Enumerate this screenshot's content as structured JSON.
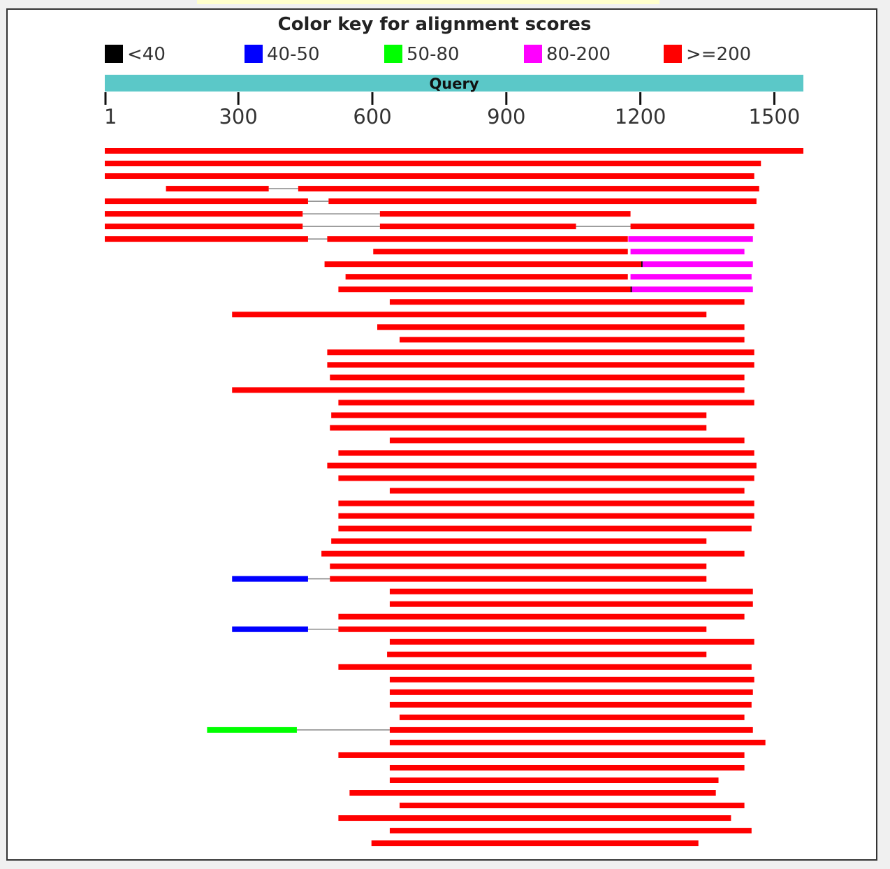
{
  "title": "Color key for alignment scores",
  "legend": [
    {
      "label": "<40",
      "color": "#000000"
    },
    {
      "label": "40-50",
      "color": "#0000ff"
    },
    {
      "label": "50-80",
      "color": "#00ff00"
    },
    {
      "label": "80-200",
      "color": "#ff00ff"
    },
    {
      "label": ">=200",
      "color": "#ff0000"
    }
  ],
  "query": {
    "label": "Query",
    "color": "#5bc8c8",
    "length": 1565
  },
  "ticks": [
    {
      "label": "1",
      "value": 1
    },
    {
      "label": "300",
      "value": 300
    },
    {
      "label": "600",
      "value": 600
    },
    {
      "label": "900",
      "value": 900
    },
    {
      "label": "1200",
      "value": 1200
    },
    {
      "label": "1500",
      "value": 1500
    }
  ],
  "connector_color": "#888888",
  "hits": [
    {
      "segments": [
        {
          "start": 1,
          "end": 1565,
          "color": "#ff0000"
        }
      ]
    },
    {
      "segments": [
        {
          "start": 1,
          "end": 1470,
          "color": "#ff0000"
        }
      ]
    },
    {
      "segments": [
        {
          "start": 1,
          "end": 1455,
          "color": "#ff0000"
        }
      ]
    },
    {
      "segments": [
        {
          "start": 138,
          "end": 368,
          "color": "#ff0000"
        },
        {
          "start": 434,
          "end": 1466,
          "color": "#ff0000"
        }
      ]
    },
    {
      "segments": [
        {
          "start": 1,
          "end": 456,
          "color": "#ff0000"
        },
        {
          "start": 502,
          "end": 1460,
          "color": "#ff0000"
        }
      ]
    },
    {
      "segments": [
        {
          "start": 1,
          "end": 444,
          "color": "#ff0000"
        },
        {
          "start": 617,
          "end": 1178,
          "color": "#ff0000"
        }
      ]
    },
    {
      "segments": [
        {
          "start": 1,
          "end": 444,
          "color": "#ff0000"
        },
        {
          "start": 617,
          "end": 1056,
          "color": "#ff0000"
        },
        {
          "start": 1178,
          "end": 1455,
          "color": "#ff0000"
        }
      ]
    },
    {
      "segments": [
        {
          "start": 1,
          "end": 456,
          "color": "#ff0000"
        },
        {
          "start": 499,
          "end": 1172,
          "color": "#ff0000"
        },
        {
          "start": 1173,
          "end": 1452,
          "color": "#ff00ff"
        }
      ]
    },
    {
      "segments": [
        {
          "start": 602,
          "end": 1172,
          "color": "#ff0000"
        },
        {
          "start": 1178,
          "end": 1433,
          "color": "#ff00ff"
        }
      ]
    },
    {
      "segments": [
        {
          "start": 493,
          "end": 1202,
          "color": "#ff0000"
        },
        {
          "start": 1202,
          "end": 1205,
          "color": "#000000"
        },
        {
          "start": 1205,
          "end": 1452,
          "color": "#ff00ff"
        }
      ]
    },
    {
      "segments": [
        {
          "start": 540,
          "end": 1172,
          "color": "#ff0000"
        },
        {
          "start": 1178,
          "end": 1449,
          "color": "#ff00ff"
        }
      ]
    },
    {
      "segments": [
        {
          "start": 524,
          "end": 1178,
          "color": "#ff0000"
        },
        {
          "start": 1178,
          "end": 1181,
          "color": "#000000"
        },
        {
          "start": 1181,
          "end": 1452,
          "color": "#ff00ff"
        }
      ]
    },
    {
      "segments": [
        {
          "start": 639,
          "end": 1433,
          "color": "#ff0000"
        }
      ]
    },
    {
      "segments": [
        {
          "start": 286,
          "end": 1348,
          "color": "#ff0000"
        }
      ]
    },
    {
      "segments": [
        {
          "start": 611,
          "end": 1433,
          "color": "#ff0000"
        }
      ]
    },
    {
      "segments": [
        {
          "start": 661,
          "end": 1433,
          "color": "#ff0000"
        }
      ]
    },
    {
      "segments": [
        {
          "start": 499,
          "end": 1455,
          "color": "#ff0000"
        }
      ]
    },
    {
      "segments": [
        {
          "start": 499,
          "end": 1455,
          "color": "#ff0000"
        }
      ]
    },
    {
      "segments": [
        {
          "start": 505,
          "end": 1433,
          "color": "#ff0000"
        }
      ]
    },
    {
      "segments": [
        {
          "start": 286,
          "end": 1433,
          "color": "#ff0000"
        }
      ]
    },
    {
      "segments": [
        {
          "start": 524,
          "end": 1455,
          "color": "#ff0000"
        }
      ]
    },
    {
      "segments": [
        {
          "start": 508,
          "end": 1348,
          "color": "#ff0000"
        }
      ]
    },
    {
      "segments": [
        {
          "start": 505,
          "end": 1348,
          "color": "#ff0000"
        }
      ]
    },
    {
      "segments": [
        {
          "start": 639,
          "end": 1433,
          "color": "#ff0000"
        }
      ]
    },
    {
      "segments": [
        {
          "start": 524,
          "end": 1455,
          "color": "#ff0000"
        }
      ]
    },
    {
      "segments": [
        {
          "start": 499,
          "end": 1460,
          "color": "#ff0000"
        }
      ]
    },
    {
      "segments": [
        {
          "start": 524,
          "end": 1455,
          "color": "#ff0000"
        }
      ]
    },
    {
      "segments": [
        {
          "start": 639,
          "end": 1433,
          "color": "#ff0000"
        }
      ]
    },
    {
      "segments": [
        {
          "start": 524,
          "end": 1455,
          "color": "#ff0000"
        }
      ]
    },
    {
      "segments": [
        {
          "start": 524,
          "end": 1455,
          "color": "#ff0000"
        }
      ]
    },
    {
      "segments": [
        {
          "start": 524,
          "end": 1449,
          "color": "#ff0000"
        }
      ]
    },
    {
      "segments": [
        {
          "start": 508,
          "end": 1348,
          "color": "#ff0000"
        }
      ]
    },
    {
      "segments": [
        {
          "start": 486,
          "end": 1433,
          "color": "#ff0000"
        }
      ]
    },
    {
      "segments": [
        {
          "start": 505,
          "end": 1348,
          "color": "#ff0000"
        }
      ]
    },
    {
      "segments": [
        {
          "start": 286,
          "end": 456,
          "color": "#0000ff"
        },
        {
          "start": 505,
          "end": 1348,
          "color": "#ff0000"
        }
      ]
    },
    {
      "segments": [
        {
          "start": 639,
          "end": 1452,
          "color": "#ff0000"
        }
      ]
    },
    {
      "segments": [
        {
          "start": 639,
          "end": 1452,
          "color": "#ff0000"
        }
      ]
    },
    {
      "segments": [
        {
          "start": 524,
          "end": 1433,
          "color": "#ff0000"
        }
      ]
    },
    {
      "segments": [
        {
          "start": 286,
          "end": 456,
          "color": "#0000ff"
        },
        {
          "start": 524,
          "end": 1348,
          "color": "#ff0000"
        }
      ]
    },
    {
      "segments": [
        {
          "start": 639,
          "end": 1455,
          "color": "#ff0000"
        }
      ]
    },
    {
      "segments": [
        {
          "start": 633,
          "end": 1348,
          "color": "#ff0000"
        }
      ]
    },
    {
      "segments": [
        {
          "start": 524,
          "end": 1449,
          "color": "#ff0000"
        }
      ]
    },
    {
      "segments": [
        {
          "start": 639,
          "end": 1455,
          "color": "#ff0000"
        }
      ]
    },
    {
      "segments": [
        {
          "start": 639,
          "end": 1452,
          "color": "#ff0000"
        }
      ]
    },
    {
      "segments": [
        {
          "start": 639,
          "end": 1449,
          "color": "#ff0000"
        }
      ]
    },
    {
      "segments": [
        {
          "start": 661,
          "end": 1433,
          "color": "#ff0000"
        }
      ]
    },
    {
      "segments": [
        {
          "start": 230,
          "end": 431,
          "color": "#00ff00"
        },
        {
          "start": 639,
          "end": 1452,
          "color": "#ff0000"
        }
      ]
    },
    {
      "segments": [
        {
          "start": 639,
          "end": 1480,
          "color": "#ff0000"
        }
      ]
    },
    {
      "segments": [
        {
          "start": 524,
          "end": 1433,
          "color": "#ff0000"
        }
      ]
    },
    {
      "segments": [
        {
          "start": 639,
          "end": 1433,
          "color": "#ff0000"
        }
      ]
    },
    {
      "segments": [
        {
          "start": 639,
          "end": 1375,
          "color": "#ff0000"
        }
      ]
    },
    {
      "segments": [
        {
          "start": 549,
          "end": 1369,
          "color": "#ff0000"
        }
      ]
    },
    {
      "segments": [
        {
          "start": 661,
          "end": 1433,
          "color": "#ff0000"
        }
      ]
    },
    {
      "segments": [
        {
          "start": 524,
          "end": 1403,
          "color": "#ff0000"
        }
      ]
    },
    {
      "segments": [
        {
          "start": 639,
          "end": 1449,
          "color": "#ff0000"
        }
      ]
    },
    {
      "segments": [
        {
          "start": 598,
          "end": 1330,
          "color": "#ff0000"
        }
      ]
    }
  ]
}
